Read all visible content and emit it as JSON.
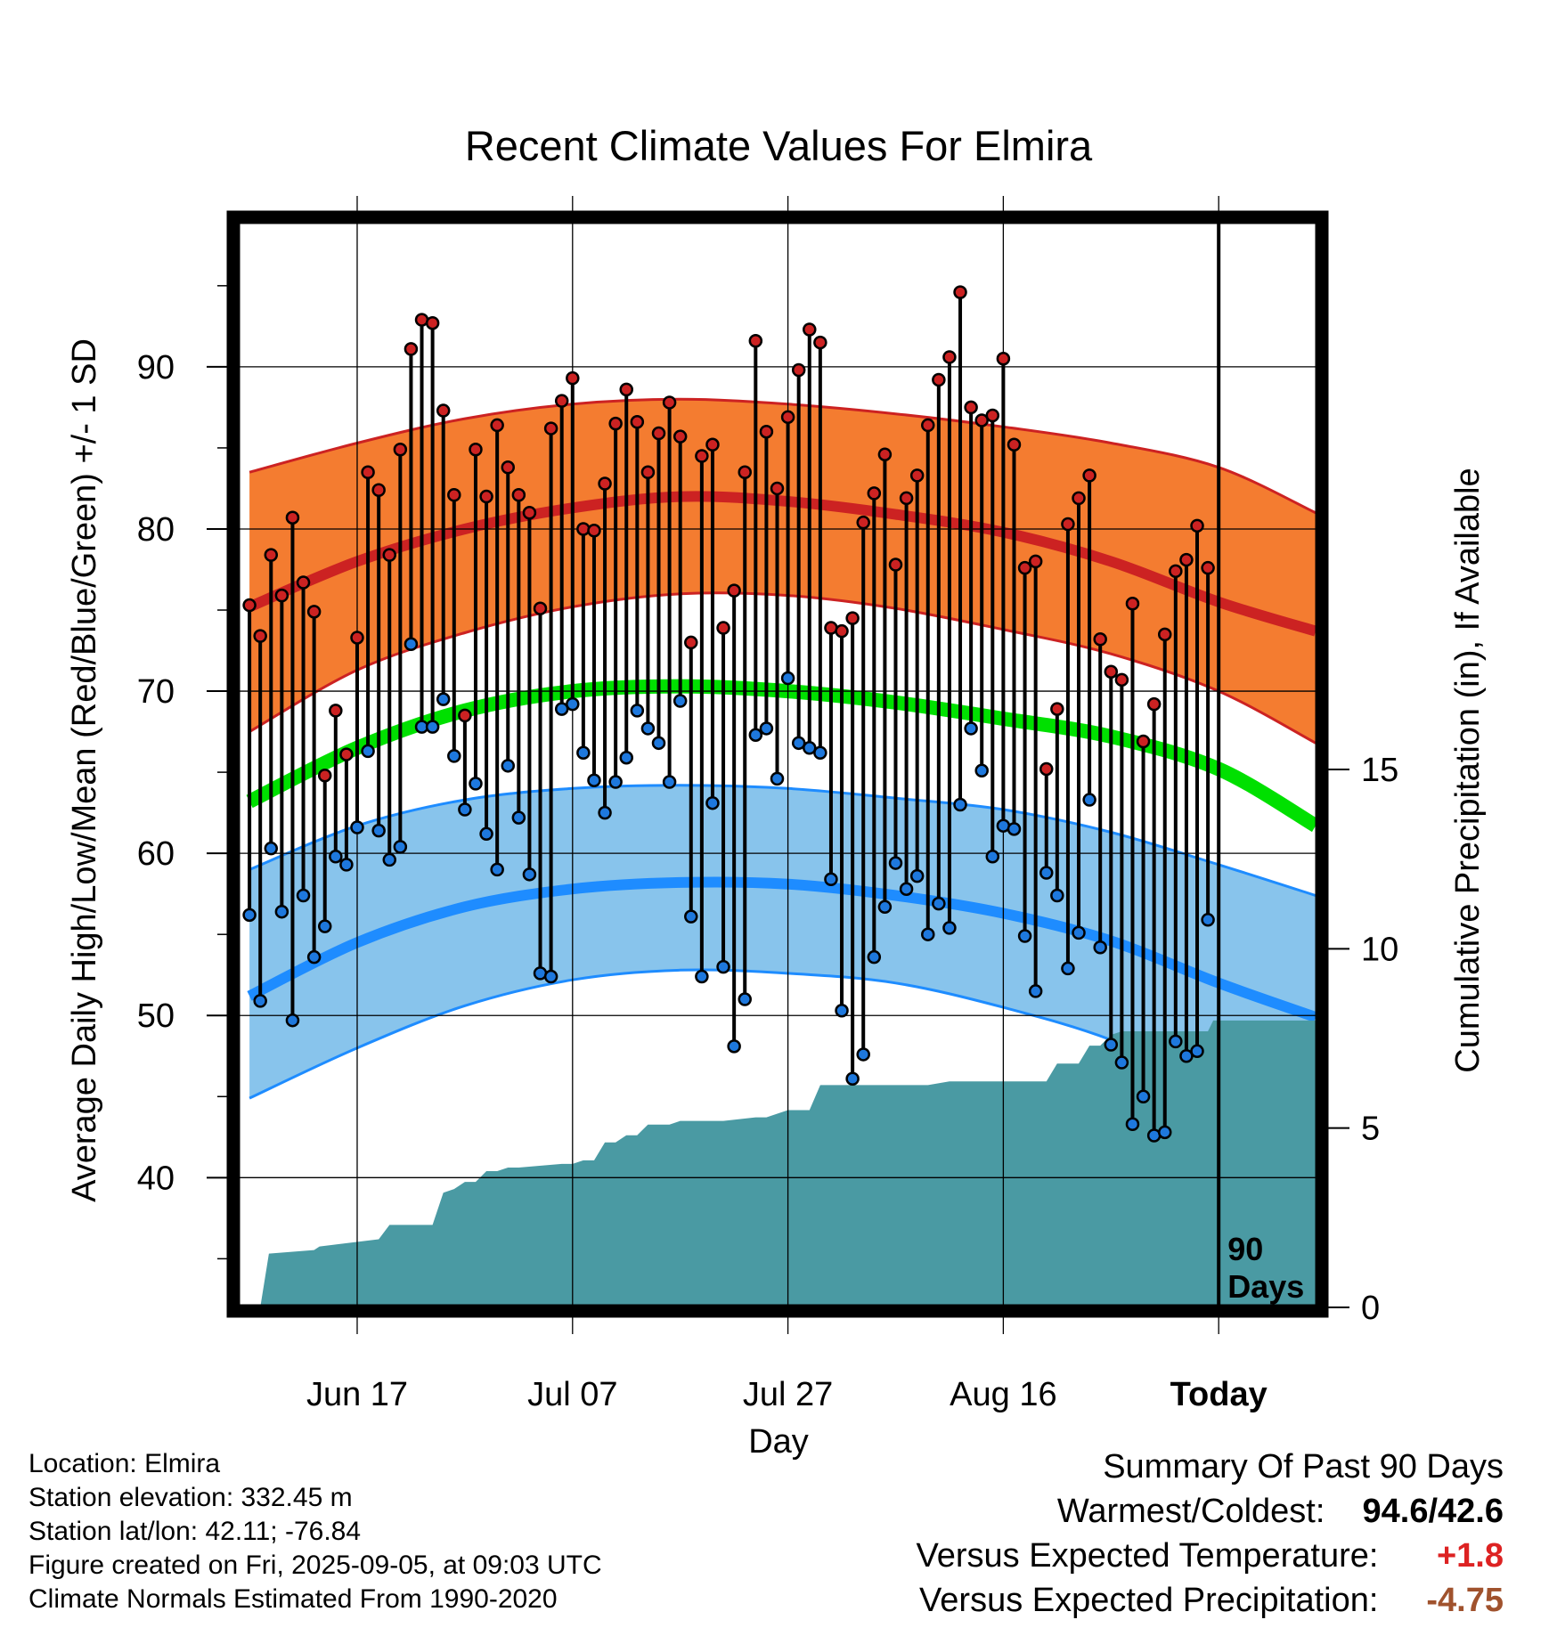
{
  "chart_data": {
    "type": "line",
    "title": "Recent Climate Values For Elmira",
    "xlabel": "Day",
    "ylabel": "Average Daily High/Low/Mean (Red/Blue/Green) +/- 1 SD",
    "y2label": "Cumulative Precipitation (in), If Available",
    "x_tick_labels": [
      "Jun 17",
      "Jul 07",
      "Jul 27",
      "Aug 16",
      "Today"
    ],
    "x_tick_days": [
      10,
      30,
      50,
      70,
      90
    ],
    "xlim": [
      -1,
      99
    ],
    "ylim": [
      32,
      99
    ],
    "y_ticks": [
      40,
      50,
      60,
      70,
      80,
      90
    ],
    "y2lim": [
      0,
      30.3
    ],
    "y2_ticks": [
      0,
      5,
      10,
      15
    ],
    "today_marker_label": [
      "90",
      "Days"
    ],
    "grid": true,
    "colors": {
      "high": "#cc2222",
      "high_band": "#f47c30",
      "low": "#1e8cff",
      "low_band": "#88c4ec",
      "mean": "#00e000",
      "precip": "#4a9aa3",
      "obs_high_dot": "#cc2222",
      "obs_low_dot": "#1e78dd"
    },
    "normals": {
      "days": [
        0,
        10,
        20,
        30,
        40,
        50,
        60,
        70,
        80,
        90,
        99
      ],
      "high_mean": [
        75.2,
        78.0,
        80.0,
        81.3,
        82.0,
        81.7,
        80.9,
        79.8,
        78.0,
        75.5,
        73.7
      ],
      "high_upper": [
        83.5,
        85.3,
        86.8,
        87.7,
        88.0,
        87.7,
        87.1,
        86.3,
        85.3,
        83.8,
        81.0
      ],
      "high_lower": [
        67.5,
        71.3,
        73.6,
        75.2,
        76.0,
        75.9,
        75.1,
        73.8,
        72.3,
        70.0,
        66.8
      ],
      "mean_normal": [
        63.2,
        66.5,
        68.8,
        70.0,
        70.3,
        70.0,
        69.3,
        68.3,
        67.2,
        65.2,
        61.7
      ],
      "low_mean": [
        51.2,
        54.5,
        56.7,
        57.8,
        58.2,
        58.1,
        57.4,
        56.3,
        54.6,
        52.0,
        49.9
      ],
      "low_upper": [
        59.0,
        61.7,
        63.3,
        64.0,
        64.2,
        64.0,
        63.4,
        62.7,
        61.3,
        59.3,
        57.4
      ],
      "low_lower": [
        44.9,
        48.0,
        50.6,
        52.2,
        52.8,
        52.6,
        52.0,
        50.5,
        48.5,
        45.5,
        43.2
      ]
    },
    "observed": {
      "days": [
        0,
        1,
        2,
        3,
        4,
        5,
        6,
        7,
        8,
        9,
        10,
        11,
        12,
        13,
        14,
        15,
        16,
        17,
        18,
        19,
        20,
        21,
        22,
        23,
        24,
        25,
        26,
        27,
        28,
        29,
        30,
        31,
        32,
        33,
        34,
        35,
        36,
        37,
        38,
        39,
        40,
        41,
        42,
        43,
        44,
        45,
        46,
        47,
        48,
        49,
        50,
        51,
        52,
        53,
        54,
        55,
        56,
        57,
        58,
        59,
        60,
        61,
        62,
        63,
        64,
        65,
        66,
        67,
        68,
        69,
        70,
        71,
        72,
        73,
        74,
        75,
        76,
        77,
        78,
        79,
        80,
        81,
        82,
        83,
        84,
        85,
        86,
        87,
        88,
        89
      ],
      "high": [
        75.3,
        73.4,
        78.4,
        75.9,
        80.7,
        76.7,
        74.9,
        64.8,
        68.8,
        66.1,
        73.3,
        83.5,
        82.4,
        78.4,
        84.9,
        91.1,
        92.9,
        92.7,
        87.3,
        82.1,
        68.5,
        84.9,
        82.0,
        86.4,
        83.8,
        82.1,
        81.0,
        75.1,
        86.2,
        87.9,
        89.3,
        80.0,
        79.9,
        82.8,
        86.5,
        88.6,
        86.6,
        83.5,
        85.9,
        87.8,
        85.7,
        73.0,
        84.5,
        85.2,
        73.9,
        76.2,
        83.5,
        91.6,
        86.0,
        82.5,
        86.9,
        89.8,
        92.3,
        91.5,
        73.9,
        73.7,
        74.5,
        80.4,
        82.2,
        84.6,
        77.8,
        81.9,
        83.3,
        86.4,
        89.2,
        90.6,
        94.6,
        87.5,
        86.7,
        87.0,
        90.5,
        85.2,
        77.6,
        78.0,
        65.2,
        68.9,
        80.3,
        81.9,
        83.3,
        73.2,
        71.2,
        70.7,
        75.4,
        66.9,
        69.2,
        73.5,
        77.4,
        78.1,
        80.2,
        77.6
      ],
      "low": [
        56.2,
        50.9,
        60.3,
        56.4,
        49.7,
        57.4,
        53.6,
        55.5,
        59.8,
        59.3,
        61.6,
        66.3,
        61.4,
        59.6,
        60.4,
        72.9,
        67.8,
        67.8,
        69.5,
        66.0,
        62.7,
        64.3,
        61.2,
        59.0,
        65.4,
        62.2,
        58.7,
        52.6,
        52.4,
        68.9,
        69.2,
        66.2,
        64.5,
        62.5,
        64.4,
        65.9,
        68.8,
        67.7,
        66.8,
        64.4,
        69.4,
        56.1,
        52.4,
        63.1,
        53.0,
        48.1,
        51.0,
        67.3,
        67.7,
        64.6,
        70.8,
        66.8,
        66.5,
        66.2,
        58.4,
        50.3,
        46.1,
        47.6,
        53.6,
        56.7,
        59.4,
        57.8,
        58.6,
        55.0,
        56.9,
        55.4,
        63.0,
        67.7,
        65.1,
        59.8,
        61.7,
        61.5,
        54.9,
        51.5,
        58.8,
        57.4,
        52.9,
        55.1,
        63.3,
        54.2,
        48.2,
        47.1,
        43.3,
        45.0,
        42.6,
        42.8,
        48.4,
        47.5,
        47.8,
        55.9
      ]
    },
    "cumulative_precip": {
      "days": [
        0,
        1,
        1.8,
        6,
        6.5,
        12,
        13,
        17,
        18,
        19,
        20,
        21,
        22,
        23,
        24,
        25,
        29,
        30,
        31,
        32,
        33,
        34,
        35,
        36,
        37,
        38,
        39,
        40,
        44,
        47,
        48,
        50,
        51,
        52,
        53,
        54,
        55,
        56,
        63,
        65,
        67,
        69,
        70,
        71,
        72,
        73,
        74,
        75,
        76,
        77,
        78,
        79,
        80,
        81,
        82,
        83,
        84,
        85,
        86,
        87,
        88,
        89,
        89.5,
        99
      ],
      "values": [
        0,
        0,
        1.5,
        1.6,
        1.7,
        1.9,
        2.3,
        2.3,
        3.2,
        3.3,
        3.5,
        3.5,
        3.8,
        3.8,
        3.9,
        3.9,
        4.0,
        4.0,
        4.1,
        4.1,
        4.6,
        4.6,
        4.8,
        4.8,
        5.1,
        5.1,
        5.1,
        5.2,
        5.2,
        5.3,
        5.3,
        5.5,
        5.5,
        5.5,
        6.2,
        6.2,
        6.2,
        6.2,
        6.2,
        6.3,
        6.3,
        6.3,
        6.3,
        6.3,
        6.3,
        6.3,
        6.3,
        6.8,
        6.8,
        6.8,
        7.3,
        7.3,
        7.6,
        7.7,
        7.7,
        7.7,
        7.7,
        7.7,
        7.7,
        7.7,
        7.7,
        7.7,
        8.0,
        8.0
      ]
    }
  },
  "info": {
    "location": "Location: Elmira",
    "elevation": "Station elevation: 332.45 m",
    "latlon": "Station lat/lon: 42.11; -76.84",
    "created": "Figure created on Fri, 2025-09-05, at 09:03 UTC",
    "normals": "Climate Normals Estimated From 1990-2020"
  },
  "summary": {
    "title": "Summary Of Past 90 Days",
    "warm_cold_label": "Warmest/Coldest:",
    "warm_cold_value": "94.6/42.6",
    "temp_label": "Versus Expected Temperature:",
    "temp_value": "+1.8",
    "temp_color": "#dd2222",
    "precip_label": "Versus Expected Precipitation:",
    "precip_value": "-4.75",
    "precip_color": "#a0522d"
  }
}
